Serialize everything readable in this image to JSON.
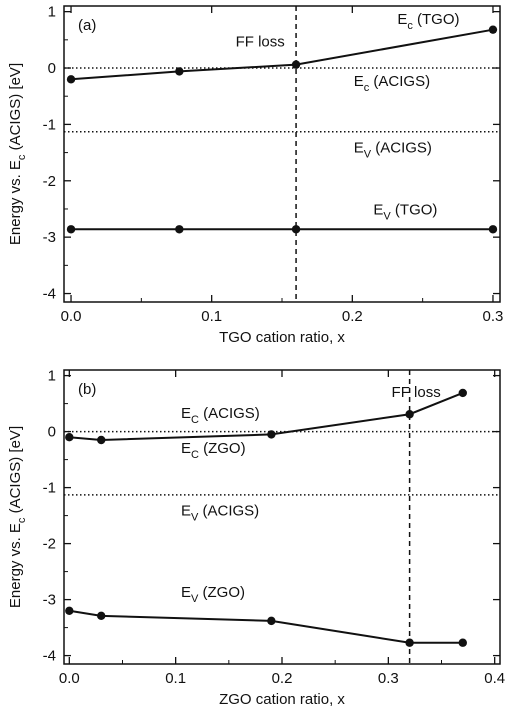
{
  "chart_data": [
    {
      "type": "line",
      "panel_label": "(a)",
      "xlabel": "TGO cation ratio, x",
      "ylabel_main": "Energy vs. E",
      "ylabel_sub": "c",
      "ylabel_tail": " (ACIGS) [eV]",
      "xlim": [
        -0.005,
        0.305
      ],
      "ylim": [
        -4.15,
        1.1
      ],
      "xticks": [
        0.0,
        0.1,
        0.2,
        0.3
      ],
      "xtick_labels": [
        "0.0",
        "0.1",
        "0.2",
        "0.3"
      ],
      "yticks": [
        1,
        0,
        -1,
        -2,
        -3,
        -4
      ],
      "ytick_labels": [
        "1",
        "0",
        "-1",
        "-2",
        "-3",
        "-4"
      ],
      "series": [
        {
          "style": "solid",
          "x": [
            0.0,
            0.077,
            0.16,
            0.3
          ],
          "y": [
            -0.2,
            -0.06,
            0.06,
            0.68
          ]
        },
        {
          "style": "solid",
          "x": [
            0.0,
            0.077,
            0.16,
            0.3
          ],
          "y": [
            -2.86,
            -2.86,
            -2.86,
            -2.86
          ]
        }
      ],
      "hlines": [
        {
          "style": "dotted",
          "y": 0.0
        },
        {
          "style": "dotted",
          "y": -1.13
        }
      ],
      "vline": {
        "style": "dashed",
        "x": 0.16
      },
      "annotations": [
        {
          "text": "FF loss",
          "x": 0.117,
          "y": 0.38
        },
        {
          "main": "E",
          "sub": "c",
          "tail": " (TGO)",
          "x": 0.232,
          "y": 0.78
        },
        {
          "main": "E",
          "sub": "c",
          "tail": " (ACIGS)",
          "x": 0.201,
          "y": -0.32
        },
        {
          "main": "E",
          "sub": "V",
          "tail": " (ACIGS)",
          "x": 0.201,
          "y": -1.5
        },
        {
          "main": "E",
          "sub": "V",
          "tail": " (TGO)",
          "x": 0.215,
          "y": -2.6
        }
      ]
    },
    {
      "type": "line",
      "panel_label": "(b)",
      "xlabel": "ZGO cation ratio, x",
      "ylabel_main": "Energy vs. E",
      "ylabel_sub": "c",
      "ylabel_tail": " (ACIGS) [eV]",
      "xlim": [
        -0.005,
        0.405
      ],
      "ylim": [
        -4.15,
        1.1
      ],
      "xticks": [
        0.0,
        0.1,
        0.2,
        0.3,
        0.4
      ],
      "xtick_labels": [
        "0.0",
        "0.1",
        "0.2",
        "0.3",
        "0.4"
      ],
      "yticks": [
        1,
        0,
        -1,
        -2,
        -3,
        -4
      ],
      "ytick_labels": [
        "1",
        "0",
        "-1",
        "-2",
        "-3",
        "-4"
      ],
      "series": [
        {
          "style": "solid",
          "x": [
            0.0,
            0.03,
            0.19,
            0.32,
            0.37
          ],
          "y": [
            -0.1,
            -0.15,
            -0.05,
            0.31,
            0.69
          ]
        },
        {
          "style": "solid",
          "x": [
            0.0,
            0.03,
            0.19,
            0.32,
            0.37
          ],
          "y": [
            -3.2,
            -3.29,
            -3.38,
            -3.77,
            -3.77
          ]
        }
      ],
      "hlines": [
        {
          "style": "dotted",
          "y": 0.0
        },
        {
          "style": "dotted",
          "y": -1.13
        }
      ],
      "vline": {
        "style": "dashed",
        "x": 0.32
      },
      "annotations": [
        {
          "text": "FF loss",
          "x": 0.303,
          "y": 0.62
        },
        {
          "main": "E",
          "sub": "C",
          "tail": " (ACIGS)",
          "x": 0.105,
          "y": 0.24
        },
        {
          "main": "E",
          "sub": "C",
          "tail": " (ZGO)",
          "x": 0.105,
          "y": -0.38
        },
        {
          "main": "E",
          "sub": "V",
          "tail": " (ACIGS)",
          "x": 0.105,
          "y": -1.5
        },
        {
          "main": "E",
          "sub": "V",
          "tail": " (ZGO)",
          "x": 0.105,
          "y": -2.95
        }
      ]
    }
  ]
}
